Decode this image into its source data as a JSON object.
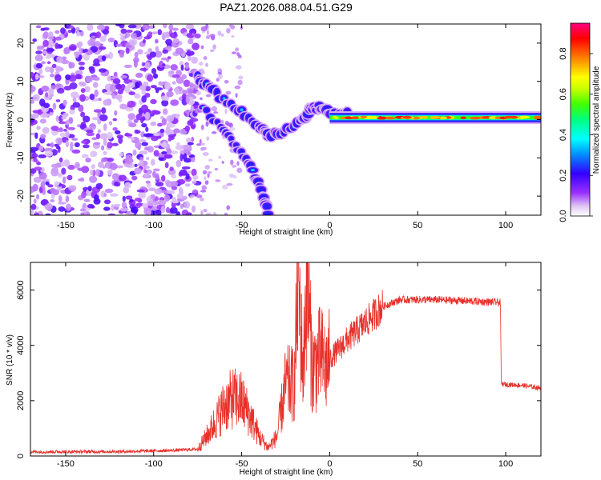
{
  "title": "PAZ1.2026.088.04.51.G29",
  "chart_data": [
    {
      "type": "heatmap",
      "name": "spectrogram",
      "xlabel": "Height of straight line (km)",
      "ylabel": "Frequency (Hz)",
      "xlim": [
        -170,
        120
      ],
      "ylim": [
        -25,
        25
      ],
      "xticks": [
        -150,
        -100,
        -50,
        0,
        50,
        100
      ],
      "yticks": [
        -20,
        -10,
        0,
        10,
        20
      ],
      "colorbar": {
        "label": "Normalized spectral amplitude",
        "range": [
          0,
          0.95
        ],
        "ticks": [
          0.0,
          0.2,
          0.4,
          0.6,
          0.8
        ],
        "tick_labels": [
          "0.0",
          "0.2",
          "0.4",
          "0.6",
          "0.8"
        ]
      },
      "features": [
        {
          "name": "noise region",
          "x_range": [
            -170,
            -75
          ],
          "freq_range": [
            -25,
            25
          ],
          "amplitude": 0.15
        },
        {
          "name": "upper branch",
          "points": [
            [
              -75,
              11
            ],
            [
              -70,
              9
            ],
            [
              -60,
              5
            ],
            [
              -50,
              2
            ],
            [
              -40,
              -2
            ],
            [
              -35,
              -4
            ]
          ]
        },
        {
          "name": "lower branch",
          "points": [
            [
              -72,
              3
            ],
            [
              -62,
              -2
            ],
            [
              -55,
              -6
            ],
            [
              -48,
              -10
            ],
            [
              -42,
              -15
            ],
            [
              -38,
              -20
            ],
            [
              -35,
              -24
            ]
          ]
        },
        {
          "name": "converging signal",
          "points": [
            [
              -35,
              -4
            ],
            [
              -25,
              -3
            ],
            [
              -15,
              0
            ],
            [
              -10,
              3
            ],
            [
              -5,
              3
            ],
            [
              0,
              2
            ],
            [
              10,
              1.5
            ]
          ]
        },
        {
          "name": "main carrier",
          "x_range": [
            0,
            120
          ],
          "freq": 0.5,
          "amplitude": 0.9
        }
      ]
    },
    {
      "type": "line",
      "name": "snr",
      "xlabel": "Height of straight line (km)",
      "ylabel": "SNR (10 * v/v)",
      "xlim": [
        -170,
        120
      ],
      "ylim": [
        0,
        7000
      ],
      "xticks": [
        -150,
        -100,
        -50,
        0,
        50,
        100
      ],
      "yticks": [
        0,
        2000,
        4000,
        6000
      ],
      "color": "#e8302a",
      "envelope": [
        {
          "x": -170,
          "y": 150
        },
        {
          "x": -120,
          "y": 160
        },
        {
          "x": -90,
          "y": 200
        },
        {
          "x": -75,
          "y": 250
        },
        {
          "x": -68,
          "y": 900
        },
        {
          "x": -60,
          "y": 1800
        },
        {
          "x": -55,
          "y": 2100
        },
        {
          "x": -50,
          "y": 2000
        },
        {
          "x": -45,
          "y": 1400
        },
        {
          "x": -40,
          "y": 700
        },
        {
          "x": -35,
          "y": 300
        },
        {
          "x": -30,
          "y": 700
        },
        {
          "x": -25,
          "y": 2600
        },
        {
          "x": -20,
          "y": 2600
        },
        {
          "x": -18,
          "y": 6500
        },
        {
          "x": -15,
          "y": 3000
        },
        {
          "x": -13,
          "y": 6700
        },
        {
          "x": -10,
          "y": 3200
        },
        {
          "x": -8,
          "y": 3300
        },
        {
          "x": -5,
          "y": 3600
        },
        {
          "x": -2,
          "y": 3200
        },
        {
          "x": 0,
          "y": 3500
        },
        {
          "x": 10,
          "y": 4200
        },
        {
          "x": 20,
          "y": 4800
        },
        {
          "x": 30,
          "y": 5400
        },
        {
          "x": 40,
          "y": 5650
        },
        {
          "x": 60,
          "y": 5650
        },
        {
          "x": 80,
          "y": 5600
        },
        {
          "x": 97,
          "y": 5550
        },
        {
          "x": 97.5,
          "y": 2600
        },
        {
          "x": 110,
          "y": 2550
        },
        {
          "x": 120,
          "y": 2450
        }
      ]
    }
  ]
}
